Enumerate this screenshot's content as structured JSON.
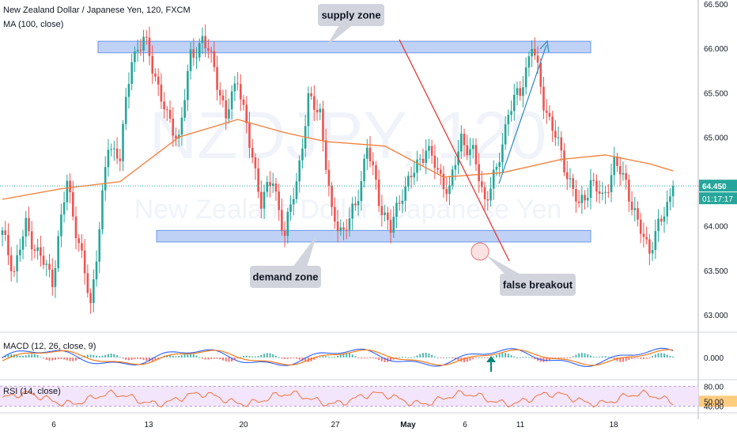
{
  "header": {
    "symbol_line": "New Zealand Dollar / Japanese Yen, 120, FXCM",
    "ma_line": "MA (100, close)",
    "macd_line": "MACD (12, 26, close, 9)",
    "rsi_line": "RSI (14, close)"
  },
  "watermark": {
    "ticker": "NZDJPY, 120",
    "name": "New Zealand Dollar / Japanese Yen"
  },
  "annotations": {
    "supply": "supply zone",
    "demand": "demand zone",
    "breakout": "false breakout"
  },
  "price_axis": {
    "ticks": [
      "66.500",
      "66.000",
      "65.500",
      "65.000",
      "64.000",
      "63.500",
      "63.000"
    ],
    "last_price": "64.450",
    "countdown": "01:17:17"
  },
  "macd_axis": {
    "ticks": [
      "0.000"
    ]
  },
  "rsi_axis": {
    "ticks": [
      "80.00",
      "50.00",
      "40.00"
    ]
  },
  "time_axis": {
    "ticks": [
      "6",
      "13",
      "20",
      "27",
      "May",
      "6",
      "11",
      "18"
    ]
  },
  "colors": {
    "up": "#26a69a",
    "down": "#ef5350",
    "ma": "#f57c35",
    "zone": "#a9c3f2",
    "trendline": "#e53935",
    "projection": "#2b8cbe",
    "label_bg": "#d1d4dc",
    "rsi_band": "#f3e5fb",
    "rsi_line": "#f2733c",
    "macd_line": "#2962ff",
    "signal_line": "#ff6d00"
  },
  "chart_data": {
    "type": "candlestick",
    "timeframe": "120",
    "y_range": [
      62.8,
      66.55
    ],
    "supply_zone": [
      65.95,
      66.08
    ],
    "demand_zone": [
      63.82,
      63.95
    ],
    "last_price": 64.45,
    "price_path": [
      [
        0,
        63.9
      ],
      [
        4,
        63.5
      ],
      [
        8,
        64.0
      ],
      [
        12,
        63.7
      ],
      [
        17,
        63.4
      ],
      [
        22,
        64.5
      ],
      [
        26,
        63.8
      ],
      [
        30,
        63.1
      ],
      [
        36,
        64.9
      ],
      [
        40,
        64.8
      ],
      [
        44,
        65.9
      ],
      [
        48,
        66.1
      ],
      [
        52,
        65.7
      ],
      [
        56,
        65.2
      ],
      [
        60,
        65.0
      ],
      [
        64,
        65.9
      ],
      [
        68,
        66.1
      ],
      [
        72,
        65.8
      ],
      [
        76,
        65.2
      ],
      [
        80,
        65.7
      ],
      [
        84,
        64.9
      ],
      [
        88,
        64.3
      ],
      [
        92,
        64.5
      ],
      [
        96,
        63.9
      ],
      [
        100,
        64.5
      ],
      [
        104,
        65.4
      ],
      [
        108,
        65.3
      ],
      [
        112,
        64.1
      ],
      [
        116,
        63.95
      ],
      [
        120,
        64.2
      ],
      [
        124,
        64.9
      ],
      [
        128,
        64.3
      ],
      [
        132,
        63.95
      ],
      [
        136,
        64.4
      ],
      [
        140,
        64.6
      ],
      [
        144,
        64.9
      ],
      [
        148,
        64.6
      ],
      [
        152,
        64.4
      ],
      [
        156,
        65.0
      ],
      [
        160,
        64.8
      ],
      [
        164,
        64.3
      ],
      [
        168,
        64.6
      ],
      [
        172,
        65.3
      ],
      [
        176,
        65.5
      ],
      [
        180,
        66.05
      ],
      [
        184,
        65.4
      ],
      [
        188,
        65.0
      ],
      [
        192,
        64.6
      ],
      [
        196,
        64.2
      ],
      [
        200,
        64.5
      ],
      [
        204,
        64.3
      ],
      [
        208,
        64.7
      ],
      [
        212,
        64.5
      ],
      [
        216,
        64.0
      ],
      [
        220,
        63.75
      ],
      [
        224,
        64.05
      ],
      [
        228,
        64.45
      ]
    ],
    "ma_path": [
      [
        0,
        64.3
      ],
      [
        20,
        64.42
      ],
      [
        40,
        64.5
      ],
      [
        60,
        65.0
      ],
      [
        80,
        65.2
      ],
      [
        96,
        65.05
      ],
      [
        110,
        64.95
      ],
      [
        130,
        64.9
      ],
      [
        150,
        64.55
      ],
      [
        170,
        64.6
      ],
      [
        190,
        64.75
      ],
      [
        205,
        64.8
      ],
      [
        220,
        64.7
      ],
      [
        228,
        64.62
      ]
    ],
    "rsi_range": [
      30,
      90
    ],
    "rsi_band": [
      40,
      80
    ],
    "rsi_mid": 50,
    "macd_axis_value": 0.0
  }
}
